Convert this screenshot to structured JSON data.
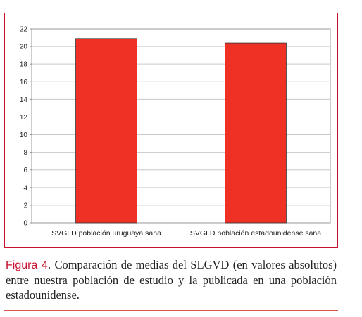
{
  "chart_data": {
    "type": "bar",
    "categories": [
      "SVGLD población uruguaya sana",
      "SVGLD población estadounidense sana"
    ],
    "values": [
      20.9,
      20.4
    ],
    "ylim": [
      0,
      22
    ],
    "yticks": [
      0,
      2,
      4,
      6,
      8,
      10,
      12,
      14,
      16,
      18,
      20,
      22
    ],
    "grid": true,
    "colors": {
      "bar": "#ee3124",
      "bar_outline": "#333333",
      "frame": "#c8102e"
    }
  },
  "caption": {
    "label": "Figura 4",
    "text": ". Comparación de medias del SLGVD (en valores absolutos) entre nuestra población de estudio y la publicada en una población estadounidense."
  }
}
